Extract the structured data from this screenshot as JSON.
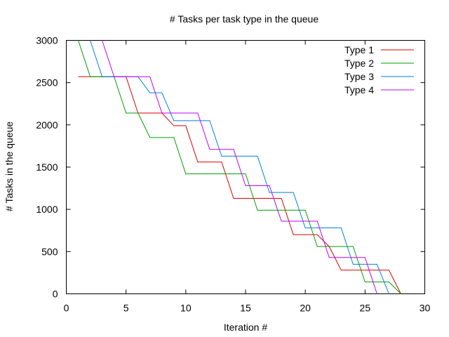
{
  "chart_data": {
    "type": "line",
    "title": "# Tasks per task type in the queue",
    "xlabel": "Iteration #",
    "ylabel": "# Tasks in the queue",
    "xlim": [
      0,
      30
    ],
    "ylim": [
      0,
      3000
    ],
    "xticks": [
      0,
      5,
      10,
      15,
      20,
      25,
      30
    ],
    "yticks": [
      0,
      500,
      1000,
      1500,
      2000,
      2500,
      3000
    ],
    "grid": false,
    "legend_position": "top-right",
    "series": [
      {
        "name": "Type 1",
        "color": "#e00000",
        "points": [
          [
            1,
            2570
          ],
          [
            5,
            2570
          ],
          [
            6,
            2140
          ],
          [
            8,
            2140
          ],
          [
            9,
            1990
          ],
          [
            10,
            1990
          ],
          [
            11,
            1560
          ],
          [
            13,
            1560
          ],
          [
            14,
            1130
          ],
          [
            18,
            1130
          ],
          [
            19,
            700
          ],
          [
            21,
            700
          ],
          [
            22,
            560
          ],
          [
            23,
            280
          ],
          [
            27,
            280
          ],
          [
            28,
            0
          ]
        ]
      },
      {
        "name": "Type 2",
        "color": "#00a000",
        "points": [
          [
            1,
            3000
          ],
          [
            2,
            2570
          ],
          [
            4,
            2570
          ],
          [
            5,
            2140
          ],
          [
            6,
            2140
          ],
          [
            7,
            1850
          ],
          [
            9,
            1850
          ],
          [
            10,
            1420
          ],
          [
            15,
            1420
          ],
          [
            16,
            990
          ],
          [
            20,
            990
          ],
          [
            21,
            560
          ],
          [
            24,
            560
          ],
          [
            25,
            140
          ],
          [
            27,
            140
          ],
          [
            28,
            0
          ]
        ]
      },
      {
        "name": "Type 3",
        "color": "#0080e0",
        "points": [
          [
            2,
            3000
          ],
          [
            3,
            2570
          ],
          [
            6,
            2570
          ],
          [
            7,
            2380
          ],
          [
            8,
            2380
          ],
          [
            9,
            2050
          ],
          [
            12,
            2050
          ],
          [
            13,
            1630
          ],
          [
            16,
            1630
          ],
          [
            17,
            1200
          ],
          [
            19,
            1200
          ],
          [
            20,
            780
          ],
          [
            23,
            780
          ],
          [
            24,
            350
          ],
          [
            26,
            350
          ],
          [
            27,
            0
          ]
        ]
      },
      {
        "name": "Type 4",
        "color": "#c000ff",
        "points": [
          [
            3,
            3000
          ],
          [
            4,
            2570
          ],
          [
            7,
            2570
          ],
          [
            8,
            2140
          ],
          [
            11,
            2140
          ],
          [
            12,
            1710
          ],
          [
            14,
            1710
          ],
          [
            15,
            1280
          ],
          [
            17,
            1280
          ],
          [
            18,
            860
          ],
          [
            21,
            860
          ],
          [
            22,
            430
          ],
          [
            25,
            430
          ],
          [
            26,
            0
          ]
        ]
      }
    ]
  }
}
